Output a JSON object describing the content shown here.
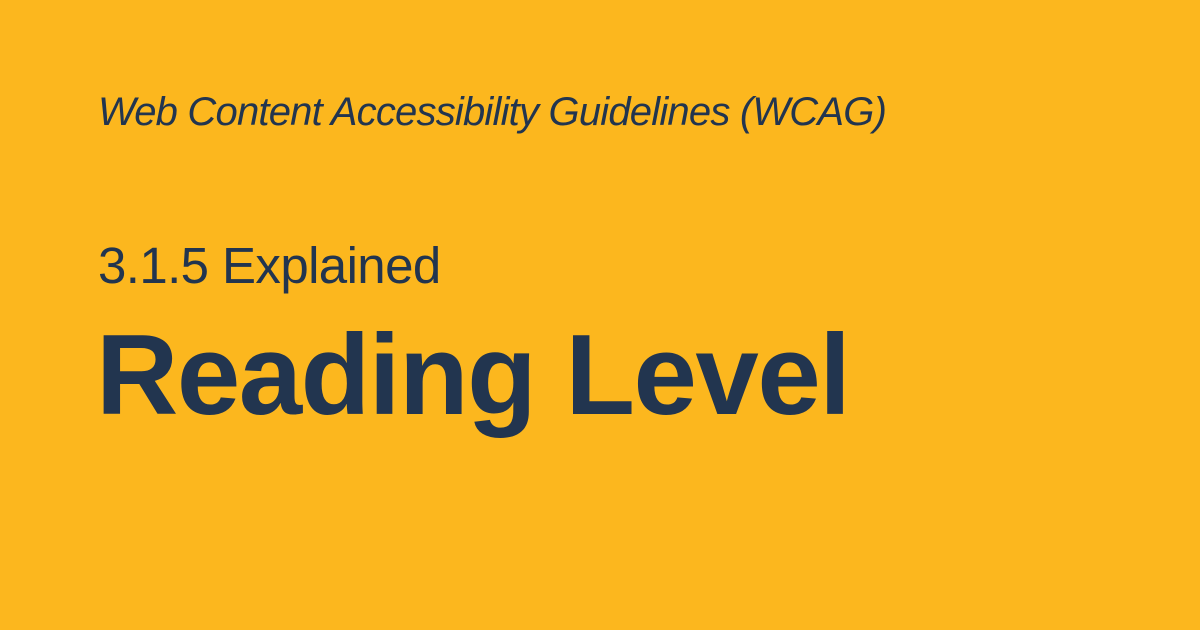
{
  "colors": {
    "background": "#FCB71E",
    "text": "#22354F"
  },
  "eyebrow": "Web Content Accessibility Guidelines (WCAG)",
  "subtitle": "3.1.5 Explained",
  "title": "Reading Level"
}
